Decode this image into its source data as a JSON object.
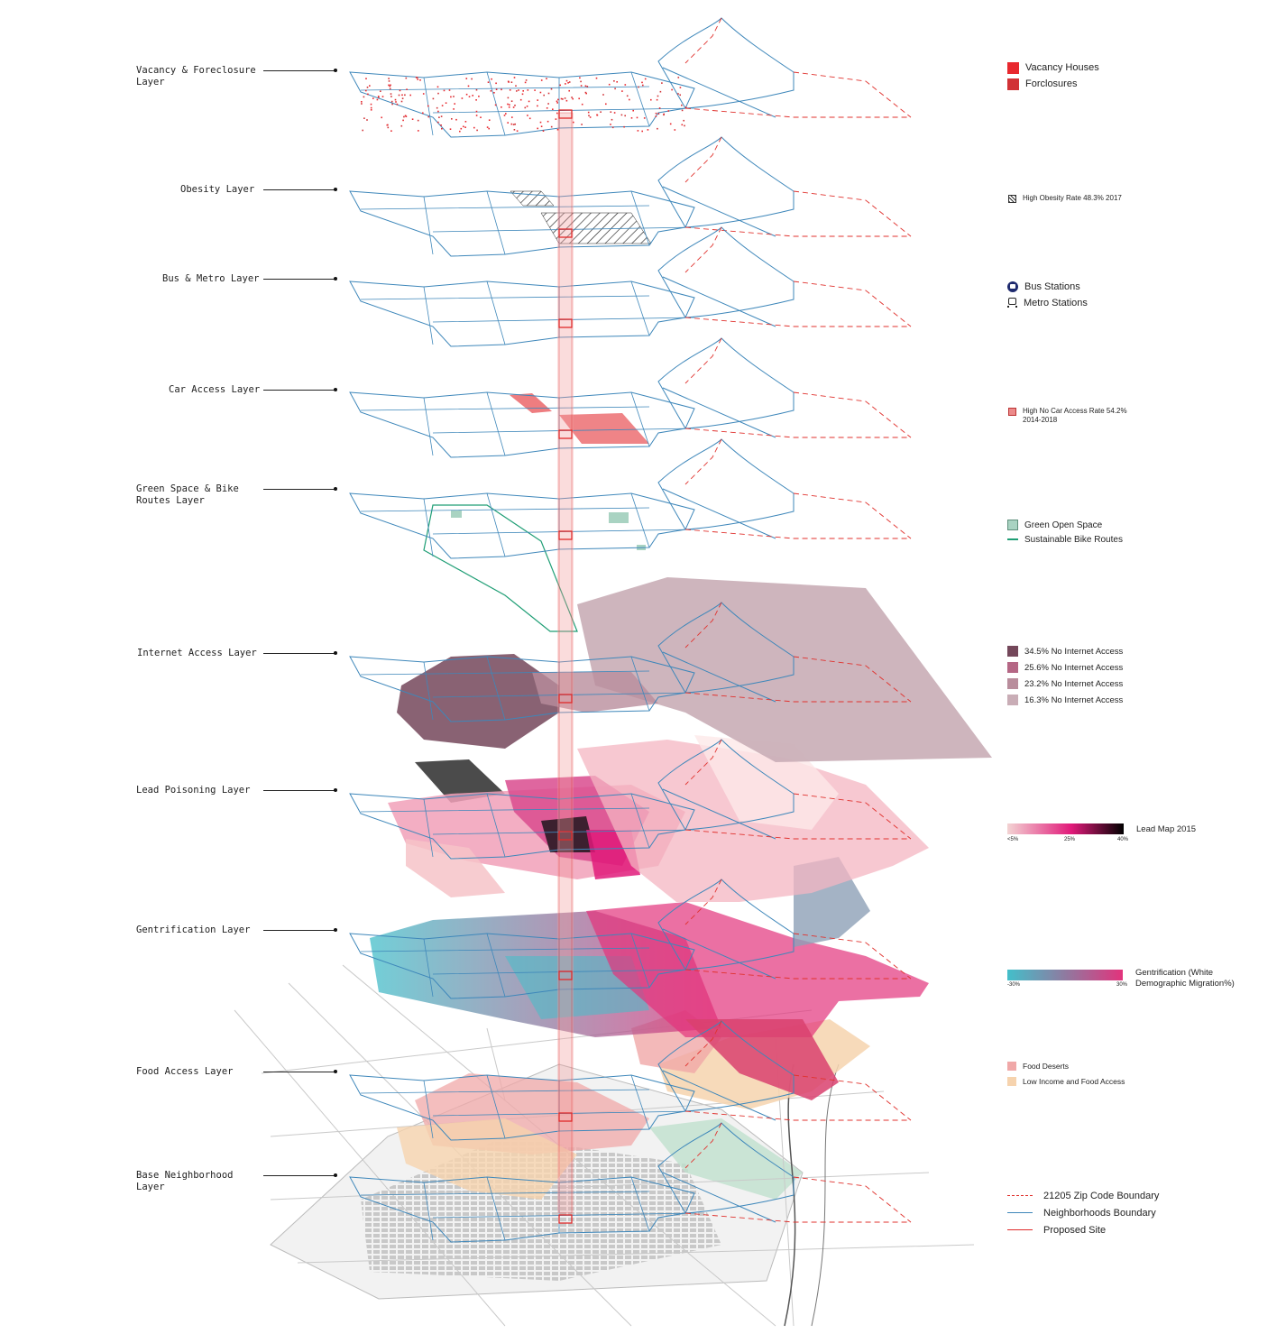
{
  "layers": [
    {
      "label": "Vacancy & Foreclosure\nLayer"
    },
    {
      "label": "Obesity Layer"
    },
    {
      "label": "Bus & Metro Layer"
    },
    {
      "label": "Car Access Layer"
    },
    {
      "label": "Green Space & Bike\nRoutes Layer"
    },
    {
      "label": "Internet Access Layer"
    },
    {
      "label": "Lead Poisoning Layer"
    },
    {
      "label": "Gentrification Layer"
    },
    {
      "label": "Food Access Layer"
    },
    {
      "label": "Base Neighborhood\nLayer"
    }
  ],
  "legend": {
    "vacancy": [
      {
        "label": "Vacancy Houses",
        "color": "#e8282e"
      },
      {
        "label": "Forclosures",
        "color": "#d13236"
      }
    ],
    "obesity": {
      "label": "High Obesity Rate 48.3% 2017"
    },
    "transit": [
      {
        "label": "Bus Stations",
        "icon": "bus-icon"
      },
      {
        "label": "Metro Stations",
        "icon": "train-icon"
      }
    ],
    "car": {
      "label": "High No Car Access Rate 54.2%",
      "label2": "2014-2018",
      "color": "#ec8a8a"
    },
    "green": [
      {
        "label": "Green Open Space",
        "color": "#a9d3c2"
      },
      {
        "label": "Sustainable Bike Routes",
        "color": "#1f9e75"
      }
    ],
    "internet": [
      {
        "label": "34.5% No Internet Access",
        "color": "#74475a"
      },
      {
        "label": "25.6% No Internet Access",
        "color": "#b56785"
      },
      {
        "label": "23.2% No Internet Access",
        "color": "#b98d9c"
      },
      {
        "label": "16.3% No Internet Access",
        "color": "#c9adb6"
      }
    ],
    "lead": {
      "title": "Lead Map 2015",
      "ticks": [
        "<5%",
        "25%",
        "40%"
      ],
      "colors": [
        "#f3d3d3",
        "#e11a7a",
        "#000000"
      ]
    },
    "gentrification": {
      "title_line1": "Gentrification (White",
      "title_line2": "Demographic Migration%)",
      "ticks": [
        "-30%",
        "30%"
      ],
      "colors": [
        "#43bfca",
        "#e2337c"
      ]
    },
    "food": [
      {
        "label": "Food Deserts",
        "color": "#f0a8a8"
      },
      {
        "label": "Low Income and Food Access",
        "color": "#f6d3ae"
      }
    ],
    "boundaries": [
      {
        "label": "21205 Zip Code Boundary",
        "color": "#e0322e",
        "style": "dashed"
      },
      {
        "label": "Neighborhoods Boundary",
        "color": "#3e87ba",
        "style": "solid"
      },
      {
        "label": "Proposed Site",
        "color": "#e02a2a",
        "style": "solid"
      }
    ]
  }
}
